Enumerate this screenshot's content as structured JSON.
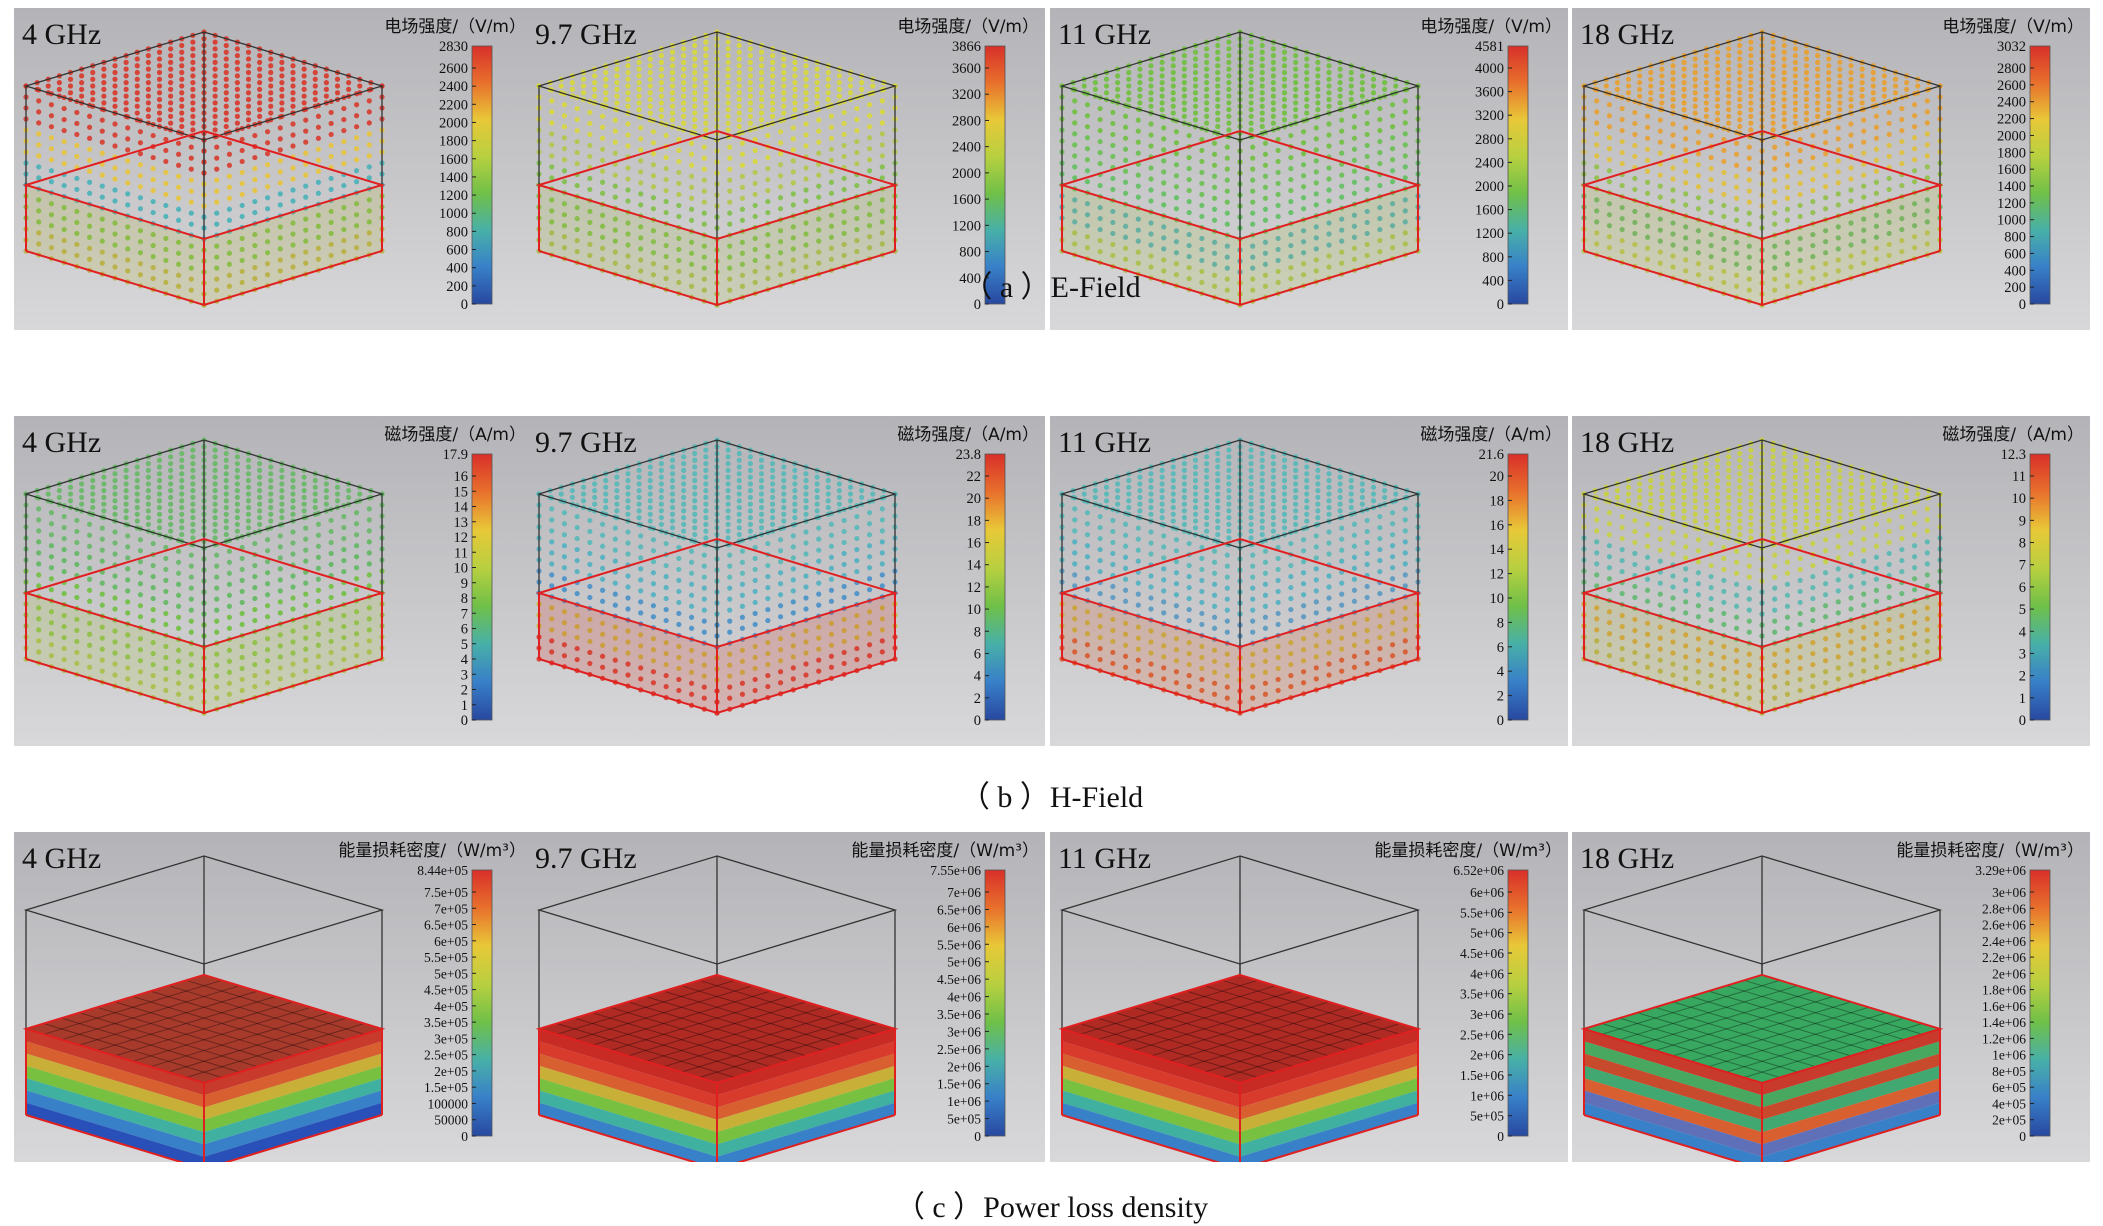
{
  "rows": [
    {
      "id": "e-field",
      "caption": "（ a ）E-Field",
      "kind": "field",
      "unit_label": "电场强度/（V/m）",
      "panels": [
        {
          "freq": "4 GHz",
          "max": "2830",
          "ticks": [
            "2600",
            "2400",
            "2200",
            "2000",
            "1800",
            "1600",
            "1400",
            "1200",
            "1000",
            "800",
            "600",
            "400",
            "200",
            "0"
          ],
          "colors": {
            "top": "#d83a2c",
            "upper": "#e8c43a",
            "mid": "#48b0b8",
            "lower": "#78c040",
            "bottom": "#b8b040"
          },
          "topLayer": 0.3
        },
        {
          "freq": "9.7 GHz",
          "max": "3866",
          "ticks": [
            "3600",
            "3200",
            "2800",
            "2400",
            "2000",
            "1600",
            "1200",
            "800",
            "400",
            "0"
          ],
          "colors": {
            "top": "#d8d83a",
            "upper": "#b0c848",
            "mid": "#80c048",
            "lower": "#78c040",
            "bottom": "#a8b848"
          },
          "topLayer": 0.5
        },
        {
          "freq": "11 GHz",
          "max": "4581",
          "ticks": [
            "4000",
            "3600",
            "3200",
            "2800",
            "2400",
            "2000",
            "1600",
            "1200",
            "800",
            "400",
            "0"
          ],
          "colors": {
            "top": "#70c040",
            "upper": "#68c050",
            "mid": "#60c060",
            "lower": "#48a8b8",
            "bottom": "#a8c048"
          },
          "topLayer": 0.5
        },
        {
          "freq": "18 GHz",
          "max": "3032",
          "ticks": [
            "2800",
            "2600",
            "2400",
            "2200",
            "2000",
            "1800",
            "1600",
            "1400",
            "1200",
            "1000",
            "800",
            "600",
            "400",
            "200",
            "0"
          ],
          "colors": {
            "top": "#e8a030",
            "upper": "#e0c038",
            "mid": "#90c048",
            "lower": "#60b060",
            "bottom": "#b8c048"
          },
          "topLayer": 0.4
        }
      ]
    },
    {
      "id": "h-field",
      "caption": "（ b ）H-Field",
      "kind": "field",
      "unit_label": "磁场强度/（A/m）",
      "panels": [
        {
          "freq": "4 GHz",
          "max": "17.9",
          "ticks": [
            "16",
            "15",
            "14",
            "13",
            "12",
            "11",
            "10",
            "9",
            "8",
            "7",
            "6",
            "5",
            "4",
            "3",
            "2",
            "1",
            "0"
          ],
          "colors": {
            "top": "#68b868",
            "upper": "#60b860",
            "mid": "#70c040",
            "lower": "#88c040",
            "bottom": "#a8c048"
          },
          "topLayer": 0.5
        },
        {
          "freq": "9.7 GHz",
          "max": "23.8",
          "ticks": [
            "22",
            "20",
            "18",
            "16",
            "14",
            "12",
            "10",
            "8",
            "6",
            "4",
            "2",
            "0"
          ],
          "colors": {
            "top": "#58b8b8",
            "upper": "#50b0c0",
            "mid": "#4890c8",
            "lower": "#c8b838",
            "bottom": "#d83a2c"
          },
          "topLayer": 0.5
        },
        {
          "freq": "11 GHz",
          "max": "21.6",
          "ticks": [
            "20",
            "18",
            "16",
            "14",
            "12",
            "10",
            "8",
            "6",
            "4",
            "2",
            "0"
          ],
          "colors": {
            "top": "#58b8b8",
            "upper": "#50b0c0",
            "mid": "#5898c0",
            "lower": "#c8b838",
            "bottom": "#d85a2c"
          },
          "topLayer": 0.5
        },
        {
          "freq": "18 GHz",
          "max": "12.3",
          "ticks": [
            "11",
            "10",
            "9",
            "8",
            "7",
            "6",
            "5",
            "4",
            "3",
            "2",
            "1",
            "0"
          ],
          "colors": {
            "top": "#c8d040",
            "upper": "#58b8b0",
            "mid": "#60b870",
            "lower": "#d8a030",
            "bottom": "#b8b040"
          },
          "topLayer": 0.35
        }
      ]
    },
    {
      "id": "power-loss",
      "caption": "（ c ）Power loss density",
      "kind": "loss",
      "unit_label": "能量损耗密度/（W/m³）",
      "panels": [
        {
          "freq": "4 GHz",
          "max": "8.44e+05",
          "ticks": [
            "7.5e+05",
            "7e+05",
            "6.5e+05",
            "6e+05",
            "5.5e+05",
            "5e+05",
            "4.5e+05",
            "4e+05",
            "3.5e+05",
            "3e+05",
            "2.5e+05",
            "2e+05",
            "1.5e+05",
            "100000",
            "50000",
            "0"
          ],
          "colors": {
            "top": "#a83a2c",
            "bands": [
              "#c83a2c",
              "#d86030",
              "#c8b038",
              "#78c040",
              "#40b0a0",
              "#3880c8",
              "#2850b8"
            ]
          }
        },
        {
          "freq": "9.7 GHz",
          "max": "7.55e+06",
          "ticks": [
            "7e+06",
            "6.5e+06",
            "6e+06",
            "5.5e+06",
            "5e+06",
            "4.5e+06",
            "4e+06",
            "3.5e+06",
            "3e+06",
            "2.5e+06",
            "2e+06",
            "1.5e+06",
            "1e+06",
            "5e+05",
            "0"
          ],
          "colors": {
            "top": "#b02a24",
            "bands": [
              "#c82a24",
              "#d83a2c",
              "#d86030",
              "#c8b038",
              "#78c040",
              "#40b0a0",
              "#3880c8"
            ]
          }
        },
        {
          "freq": "11 GHz",
          "max": "6.52e+06",
          "ticks": [
            "6e+06",
            "5.5e+06",
            "5e+06",
            "4.5e+06",
            "4e+06",
            "3.5e+06",
            "3e+06",
            "2.5e+06",
            "2e+06",
            "1.5e+06",
            "1e+06",
            "5e+05",
            "0"
          ],
          "colors": {
            "top": "#b02a24",
            "bands": [
              "#c82a24",
              "#d83a2c",
              "#d86030",
              "#c8b038",
              "#78c040",
              "#40b0a0",
              "#3880c8"
            ]
          }
        },
        {
          "freq": "18 GHz",
          "max": "3.29e+06",
          "ticks": [
            "3e+06",
            "2.8e+06",
            "2.6e+06",
            "2.4e+06",
            "2.2e+06",
            "2e+06",
            "1.8e+06",
            "1.6e+06",
            "1.4e+06",
            "1.2e+06",
            "1e+06",
            "8e+05",
            "6e+05",
            "4e+05",
            "2e+05",
            "0"
          ],
          "colors": {
            "top": "#38a860",
            "bands": [
              "#c83a2c",
              "#48a860",
              "#c84a2c",
              "#40a870",
              "#d86030",
              "#6070b8",
              "#3880c8"
            ]
          }
        }
      ]
    }
  ],
  "colorbar_gradient": [
    "#d8302a",
    "#e8702c",
    "#e8c838",
    "#b8d040",
    "#70c048",
    "#48b0a8",
    "#3880c8",
    "#2848a0"
  ]
}
